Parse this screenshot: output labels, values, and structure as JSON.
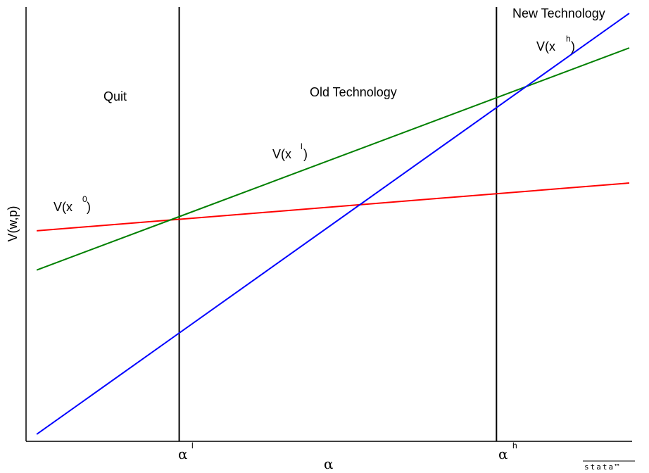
{
  "chart_data": {
    "type": "line",
    "xlabel": "α",
    "ylabel": "V(w,p)",
    "xlim": [
      0,
      1
    ],
    "ylim": [
      0,
      1
    ],
    "x_ticks": [
      {
        "symbol": "α",
        "superscript": "l",
        "x": 0.2527
      },
      {
        "symbol": "α",
        "superscript": "h",
        "x": 0.7762
      }
    ],
    "series": [
      {
        "name": "V(x0)",
        "label_base": "V(x",
        "label_sup": "0",
        "label_close": ")",
        "color": "#ff0000",
        "x": [
          0.0176,
          0.9953
        ],
        "y": [
          0.4848,
          0.5948
        ]
      },
      {
        "name": "V(xl)",
        "label_base": "V(x",
        "label_sup": "l",
        "label_close": ")",
        "color": "#008000",
        "x": [
          0.0176,
          0.9953
        ],
        "y": [
          0.3944,
          0.9058
        ]
      },
      {
        "name": "V(xh)",
        "label_base": "V(x",
        "label_sup": "h",
        "label_close": ")",
        "color": "#0000ff",
        "x": [
          0.0176,
          0.9953
        ],
        "y": [
          0.0163,
          0.9856
        ]
      }
    ],
    "vlines": [
      {
        "name": "alpha-l-line",
        "x": 0.2527,
        "color": "#000000"
      },
      {
        "name": "alpha-h-line",
        "x": 0.7762,
        "color": "#000000"
      }
    ],
    "region_labels": [
      "Quit",
      "Old Technology",
      "New Technology"
    ],
    "grid": false,
    "legend": "none"
  },
  "brand": "stata™"
}
